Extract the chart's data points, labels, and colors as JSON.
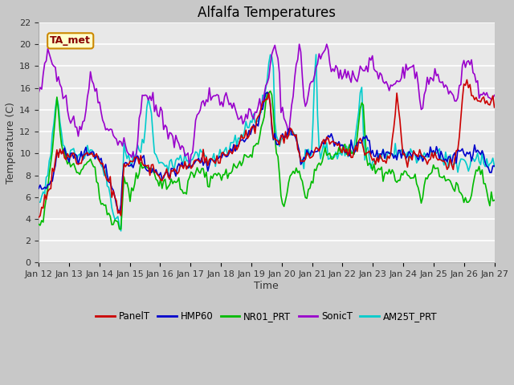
{
  "title": "Alfalfa Temperatures",
  "xlabel": "Time",
  "ylabel": "Temperature (C)",
  "ylim": [
    0,
    22
  ],
  "x_tick_labels": [
    "Jan 12",
    "Jan 13",
    "Jan 14",
    "Jan 15",
    "Jan 16",
    "Jan 17",
    "Jan 18",
    "Jan 19",
    "Jan 20",
    "Jan 21",
    "Jan 22",
    "Jan 23",
    "Jan 24",
    "Jan 25",
    "Jan 26",
    "Jan 27"
  ],
  "annotation_text": "TA_met",
  "annotation_color": "#880000",
  "annotation_bg": "#ffffcc",
  "annotation_border": "#cc8800",
  "plot_bg": "#e8e8e8",
  "fig_bg": "#cccccc",
  "series": {
    "PanelT": {
      "color": "#cc0000",
      "lw": 1.2,
      "zorder": 5
    },
    "HMP60": {
      "color": "#0000cc",
      "lw": 1.2,
      "zorder": 4
    },
    "NR01_PRT": {
      "color": "#00bb00",
      "lw": 1.2,
      "zorder": 3
    },
    "SonicT": {
      "color": "#9900cc",
      "lw": 1.2,
      "zorder": 2
    },
    "AM25T_PRT": {
      "color": "#00cccc",
      "lw": 1.2,
      "zorder": 1
    }
  },
  "title_fontsize": 12,
  "axis_label_fontsize": 9,
  "tick_fontsize": 8
}
